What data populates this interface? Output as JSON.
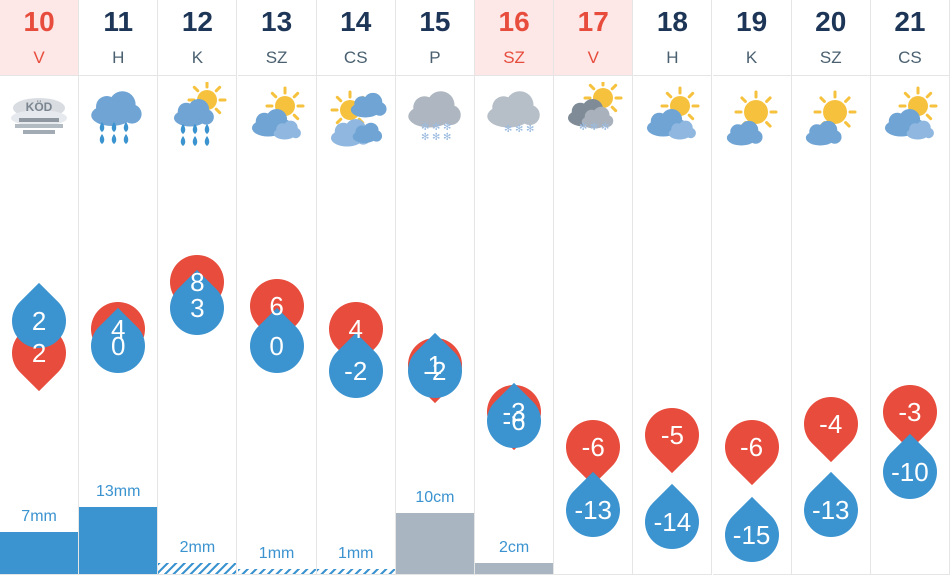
{
  "days": [
    {
      "date": "10",
      "dow": "V",
      "weekend": true,
      "icon": "fog-icon",
      "icon_label": "KÖD",
      "high": "2",
      "low": "2",
      "precip_label": "7mm",
      "precip_amount": 7,
      "precip_unit": "mm",
      "precip_kind": "rain"
    },
    {
      "date": "11",
      "dow": "H",
      "weekend": false,
      "icon": "rain-cloud-icon",
      "high": "4",
      "low": "0",
      "precip_label": "13mm",
      "precip_amount": 13,
      "precip_unit": "mm",
      "precip_kind": "rain"
    },
    {
      "date": "12",
      "dow": "K",
      "weekend": false,
      "icon": "partly-cloudy-rain-icon",
      "high": "8",
      "low": "3",
      "precip_label": "2mm",
      "precip_amount": 2,
      "precip_unit": "mm",
      "precip_kind": "light-rain"
    },
    {
      "date": "13",
      "dow": "SZ",
      "weekend": false,
      "icon": "partly-cloudy-icon",
      "high": "6",
      "low": "0",
      "precip_label": "1mm",
      "precip_amount": 1,
      "precip_unit": "mm",
      "precip_kind": "light-rain"
    },
    {
      "date": "14",
      "dow": "CS",
      "weekend": false,
      "icon": "cloudy-sun-icon",
      "high": "4",
      "low": "-2",
      "precip_label": "1mm",
      "precip_amount": 1,
      "precip_unit": "mm",
      "precip_kind": "light-rain"
    },
    {
      "date": "15",
      "dow": "P",
      "weekend": false,
      "icon": "snow-cloud-icon",
      "high": "1",
      "low": "-2",
      "precip_label": "10cm",
      "precip_amount": 10,
      "precip_unit": "cm",
      "precip_kind": "snow"
    },
    {
      "date": "16",
      "dow": "SZ",
      "weekend": true,
      "icon": "light-snow-cloud-icon",
      "high": "-3",
      "low": "-6",
      "precip_label": "2cm",
      "precip_amount": 2,
      "precip_unit": "cm",
      "precip_kind": "snow"
    },
    {
      "date": "17",
      "dow": "V",
      "weekend": true,
      "icon": "partly-cloudy-snow-icon",
      "high": "-6",
      "low": "-13",
      "precip_label": "",
      "precip_amount": 0,
      "precip_unit": "",
      "precip_kind": "none"
    },
    {
      "date": "18",
      "dow": "H",
      "weekend": false,
      "icon": "partly-cloudy-icon",
      "high": "-5",
      "low": "-14",
      "precip_label": "",
      "precip_amount": 0,
      "precip_unit": "",
      "precip_kind": "none"
    },
    {
      "date": "19",
      "dow": "K",
      "weekend": false,
      "icon": "mostly-sunny-icon",
      "high": "-6",
      "low": "-15",
      "precip_label": "",
      "precip_amount": 0,
      "precip_unit": "",
      "precip_kind": "none"
    },
    {
      "date": "20",
      "dow": "SZ",
      "weekend": false,
      "icon": "mostly-sunny-icon",
      "high": "-4",
      "low": "-13",
      "precip_label": "",
      "precip_amount": 0,
      "precip_unit": "",
      "precip_kind": "none"
    },
    {
      "date": "21",
      "dow": "CS",
      "weekend": false,
      "icon": "partly-cloudy-icon",
      "high": "-3",
      "low": "-10",
      "precip_label": "",
      "precip_amount": 0,
      "precip_unit": "",
      "precip_kind": "none"
    }
  ],
  "colors": {
    "high": "#e74c3c",
    "low": "#3b93d0",
    "weekend_header": "#fde7e7",
    "snow_bar": "#a9b6c2",
    "rain_bar": "#3b93d0"
  }
}
